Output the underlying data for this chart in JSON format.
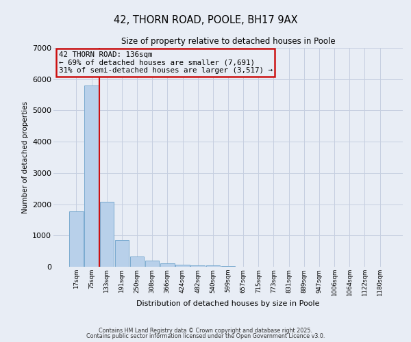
{
  "title": "42, THORN ROAD, POOLE, BH17 9AX",
  "subtitle": "Size of property relative to detached houses in Poole",
  "xlabel": "Distribution of detached houses by size in Poole",
  "ylabel": "Number of detached properties",
  "bar_values": [
    1780,
    5800,
    2080,
    850,
    330,
    190,
    100,
    70,
    50,
    40,
    30,
    10,
    8,
    5,
    5,
    4,
    3,
    3,
    3,
    3,
    2
  ],
  "bar_labels": [
    "17sqm",
    "75sqm",
    "133sqm",
    "191sqm",
    "250sqm",
    "308sqm",
    "366sqm",
    "424sqm",
    "482sqm",
    "540sqm",
    "599sqm",
    "657sqm",
    "715sqm",
    "773sqm",
    "831sqm",
    "889sqm",
    "947sqm",
    "1006sqm",
    "1064sqm",
    "1122sqm",
    "1180sqm"
  ],
  "bar_color": "#b8d0ea",
  "bar_edge_color": "#7aaad0",
  "background_color": "#e8edf5",
  "grid_color": "#c5cfe0",
  "annotation_box_color": "#cc1111",
  "vline_color": "#cc1111",
  "vline_x": 1.5,
  "annotation_title": "42 THORN ROAD: 136sqm",
  "annotation_line2": "← 69% of detached houses are smaller (7,691)",
  "annotation_line3": "31% of semi-detached houses are larger (3,517) →",
  "ylim": [
    0,
    7000
  ],
  "yticks": [
    0,
    1000,
    2000,
    3000,
    4000,
    5000,
    6000,
    7000
  ],
  "footer1": "Contains HM Land Registry data © Crown copyright and database right 2025.",
  "footer2": "Contains public sector information licensed under the Open Government Licence v3.0."
}
